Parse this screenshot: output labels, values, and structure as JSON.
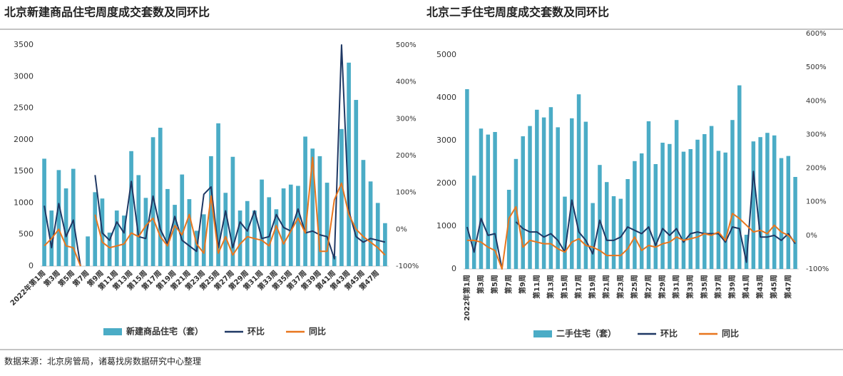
{
  "chart_data": [
    {
      "type": "combo",
      "title": "北京新建商品住宅周度成交套数及同环比",
      "categories": [
        "2022年第1周",
        null,
        "第3周",
        null,
        "第5周",
        null,
        "第7周",
        null,
        "第9周",
        null,
        "第11周",
        null,
        "第13周",
        null,
        "第15周",
        null,
        "第17周",
        null,
        "第19周",
        null,
        "第21周",
        null,
        "第23周",
        null,
        "第25周",
        null,
        "第27周",
        null,
        "第29周",
        null,
        "第31周",
        null,
        "第33周",
        null,
        "第35周",
        null,
        "第37周",
        null,
        "第39周",
        null,
        "第41周",
        null,
        "第43周",
        null,
        "第45周",
        null,
        "第47周",
        null
      ],
      "series": [
        {
          "name": "新建商品住宅（套）",
          "kind": "bar",
          "color": "#4bacc6",
          "values": [
            1700,
            880,
            1520,
            1230,
            1540,
            0,
            470,
            1170,
            1070,
            530,
            880,
            800,
            1820,
            1440,
            1080,
            2040,
            2190,
            1220,
            970,
            1450,
            1060,
            560,
            820,
            1740,
            2260,
            1160,
            1730,
            880,
            1030,
            880,
            1370,
            1090,
            900,
            1230,
            1290,
            1270,
            2050,
            1860,
            1740,
            1320,
            160,
            2170,
            3220,
            2630,
            1680,
            1340,
            1000,
            680
          ]
        },
        {
          "name": "环比",
          "kind": "line",
          "axis": "y2",
          "color": "#1f3864",
          "values": [
            64,
            -50,
            70,
            -20,
            25,
            -100,
            null,
            147,
            -10,
            -30,
            20,
            -10,
            130,
            -20,
            -25,
            90,
            0,
            -40,
            35,
            -30,
            -45,
            -60,
            95,
            115,
            -50,
            50,
            -50,
            20,
            -5,
            50,
            -25,
            -20,
            40,
            5,
            -5,
            55,
            -10,
            -5,
            -15,
            -20,
            -80,
            500,
            50,
            -20,
            -35,
            -25,
            -30,
            -35
          ]
        },
        {
          "name": "同比",
          "kind": "line",
          "axis": "y2",
          "color": "#e8761e",
          "values": [
            -45,
            -25,
            0,
            -45,
            -50,
            -100,
            null,
            40,
            -35,
            -50,
            -45,
            -40,
            -10,
            -20,
            10,
            30,
            -20,
            -45,
            10,
            -15,
            40,
            -40,
            -65,
            90,
            -65,
            -20,
            -70,
            -40,
            -20,
            -25,
            -30,
            -45,
            10,
            -40,
            -5,
            30,
            -10,
            195,
            -60,
            -60,
            80,
            125,
            40,
            0,
            -20,
            -35,
            -50,
            -70
          ]
        }
      ],
      "ylim": [
        0,
        3500
      ],
      "yticks": [
        0,
        500,
        1000,
        1500,
        2000,
        2500,
        3000,
        3500
      ],
      "y2lim": [
        -100,
        500
      ],
      "y2ticks": [
        {
          "value": -100,
          "label": "-100%"
        },
        {
          "value": 0,
          "label": "0%"
        },
        {
          "value": 100,
          "label": "100%"
        },
        {
          "value": 200,
          "label": "200%"
        },
        {
          "value": 300,
          "label": "300%"
        },
        {
          "value": 400,
          "label": "400%"
        },
        {
          "value": 500,
          "label": "500%"
        }
      ]
    },
    {
      "type": "combo",
      "title": "北京二手住宅周度成交套数及同环比",
      "categories": [
        "2022年第1周",
        null,
        "第3周",
        null,
        "第5周",
        null,
        "第7周",
        null,
        "第9周",
        null,
        "第11周",
        null,
        "第13周",
        null,
        "第15周",
        null,
        "第17周",
        null,
        "第19周",
        null,
        "第21周",
        null,
        "第23周",
        null,
        "第25周",
        null,
        "第27周",
        null,
        "第29周",
        null,
        "第31周",
        null,
        "第33周",
        null,
        "第35周",
        null,
        "第37周",
        null,
        "第39周",
        null,
        "第41周",
        null,
        "第43周",
        null,
        "第45周",
        null,
        "第47周",
        null
      ],
      "series": [
        {
          "name": "二手住宅（套）",
          "kind": "bar",
          "color": "#4bacc6",
          "values": [
            4200,
            2180,
            3280,
            3140,
            3200,
            0,
            1850,
            2570,
            3100,
            3340,
            3720,
            3540,
            3780,
            3310,
            1690,
            3520,
            4080,
            3440,
            1540,
            2430,
            2030,
            1700,
            1640,
            2100,
            2520,
            2700,
            3450,
            2450,
            2950,
            2920,
            3480,
            2740,
            2800,
            3020,
            3150,
            3340,
            2760,
            2720,
            3480,
            4290,
            800,
            2980,
            3080,
            3180,
            3120,
            2590,
            2640,
            2150
          ]
        },
        {
          "name": "环比",
          "kind": "line",
          "axis": "y2",
          "color": "#1f3864",
          "values": [
            25,
            -50,
            50,
            0,
            5,
            -100,
            null,
            40,
            20,
            10,
            10,
            -5,
            5,
            -15,
            -50,
            105,
            10,
            -15,
            -55,
            45,
            -15,
            -15,
            -5,
            25,
            15,
            5,
            25,
            -30,
            20,
            0,
            20,
            -20,
            5,
            10,
            5,
            5,
            5,
            -20,
            25,
            20,
            -80,
            190,
            -5,
            -5,
            0,
            -15,
            5,
            -25
          ]
        },
        {
          "name": "同比",
          "kind": "line",
          "axis": "y2",
          "color": "#e8761e",
          "values": [
            -15,
            -15,
            -20,
            -35,
            -45,
            -100,
            50,
            85,
            -35,
            -15,
            -20,
            -25,
            -25,
            -40,
            -50,
            -20,
            -10,
            -30,
            -35,
            -45,
            -60,
            -60,
            -60,
            -40,
            -5,
            -45,
            -30,
            -35,
            -25,
            -20,
            -5,
            -15,
            -10,
            -5,
            5,
            0,
            10,
            -15,
            65,
            50,
            30,
            10,
            15,
            5,
            30,
            10,
            0,
            -20
          ]
        }
      ],
      "ylim": [
        0,
        5500
      ],
      "yticks": [
        0,
        1000,
        2000,
        3000,
        4000,
        5000
      ],
      "y2lim": [
        -100,
        600
      ],
      "y2ticks": [
        {
          "value": -100,
          "label": "-100%"
        },
        {
          "value": 0,
          "label": "0%"
        },
        {
          "value": 100,
          "label": "100%"
        },
        {
          "value": 200,
          "label": "200%"
        },
        {
          "value": 300,
          "label": "300%"
        },
        {
          "value": 400,
          "label": "400%"
        },
        {
          "value": 500,
          "label": "500%"
        },
        {
          "value": 600,
          "label": "600%"
        }
      ]
    }
  ],
  "source": "数据来源：北京房管局，诸葛找房数据研究中心整理"
}
